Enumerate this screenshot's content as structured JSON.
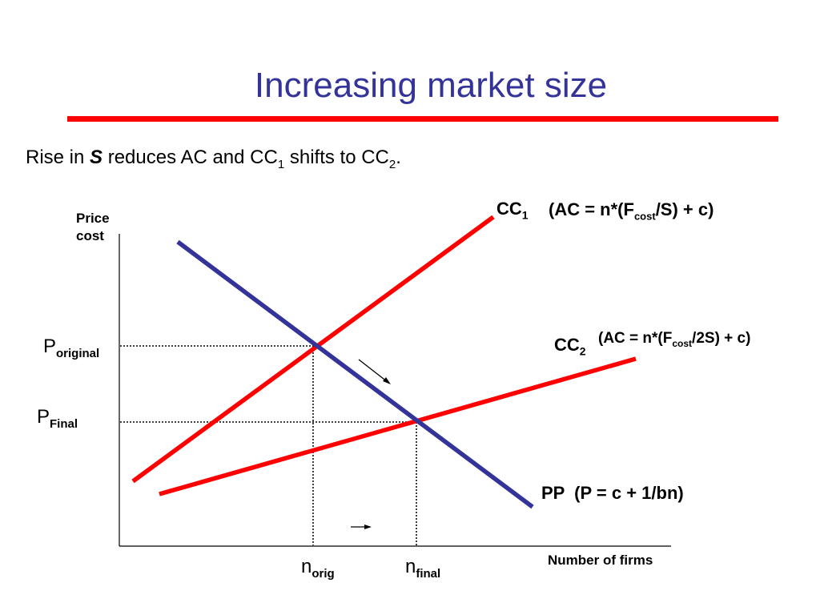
{
  "title": "Increasing market size",
  "subtitle": {
    "pre": "Rise in ",
    "var": "S",
    "mid": " reduces AC and CC",
    "sub1": "1",
    "post": " shifts to CC",
    "sub2": "2",
    "end": "."
  },
  "axes": {
    "y_label_line1": "Price",
    "y_label_line2": "cost",
    "x_label": "Number of firms"
  },
  "prices": {
    "original_base": "P",
    "original_sub": "original",
    "final_base": "P",
    "final_sub": "Final"
  },
  "firms": {
    "orig_base": "n",
    "orig_sub": "orig",
    "final_base": "n",
    "final_sub": "final"
  },
  "curves": {
    "cc1": {
      "name_base": "CC",
      "name_sub": "1",
      "eq_pre": "(AC = n*(F",
      "eq_sub": "cost",
      "eq_post": "/S) + c)",
      "color": "#ff0000"
    },
    "cc2": {
      "name_base": "CC",
      "name_sub": "2",
      "eq_pre": "(AC = n*(F",
      "eq_sub": "cost",
      "eq_post": "/2S) + c)",
      "color": "#ff0000"
    },
    "pp": {
      "label": "PP  (P = c + 1/bn)",
      "color": "#33339a"
    }
  }
}
